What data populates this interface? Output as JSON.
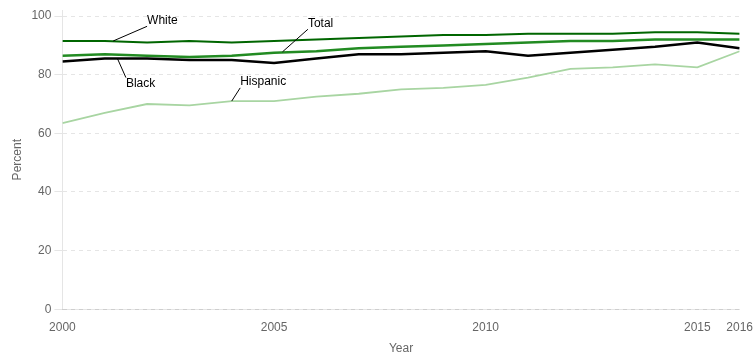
{
  "chart_data": {
    "type": "line",
    "xlabel": "Year",
    "ylabel": "Percent",
    "x": [
      2000,
      2001,
      2002,
      2003,
      2004,
      2005,
      2006,
      2007,
      2008,
      2009,
      2010,
      2011,
      2012,
      2013,
      2014,
      2015,
      2016
    ],
    "series": [
      {
        "name": "Hispanic",
        "color": "#a8d5a2",
        "values": [
          63.5,
          67.0,
          70.0,
          69.5,
          71.0,
          71.0,
          72.5,
          73.5,
          75.0,
          75.5,
          76.5,
          79.0,
          82.0,
          82.5,
          83.5,
          82.5,
          88.0
        ]
      },
      {
        "name": "Total",
        "color": "#228B22",
        "values": [
          86.5,
          87.0,
          86.5,
          86.0,
          86.5,
          87.5,
          88.0,
          89.0,
          89.5,
          90.0,
          90.5,
          91.0,
          91.5,
          91.5,
          92.0,
          92.0,
          92.0
        ]
      },
      {
        "name": "White",
        "color": "#006600",
        "values": [
          91.5,
          91.5,
          91.0,
          91.5,
          91.0,
          91.5,
          92.0,
          92.5,
          93.0,
          93.5,
          93.5,
          94.0,
          94.0,
          94.0,
          94.5,
          94.5,
          94.0
        ]
      },
      {
        "name": "Black",
        "color": "#000000",
        "values": [
          84.5,
          85.5,
          85.5,
          85.0,
          85.0,
          84.0,
          85.5,
          87.0,
          87.0,
          87.5,
          88.0,
          86.5,
          87.5,
          88.5,
          89.5,
          91.0,
          89.0
        ]
      }
    ],
    "xlim": [
      2000,
      2016
    ],
    "xticks": [
      2000,
      2005,
      2010,
      2015,
      2016
    ],
    "ylim": [
      0,
      102
    ],
    "yticks": [
      0,
      20,
      40,
      60,
      80,
      100
    ],
    "grid": "y",
    "annotations": [
      {
        "text": "White",
        "x": 2001.2,
        "y": 91.5,
        "text_x": 2002.0,
        "text_y": 96.5
      },
      {
        "text": "Total",
        "x": 2005.2,
        "y": 87.8,
        "text_x": 2005.8,
        "text_y": 95.5
      },
      {
        "text": "Black",
        "x": 2001.3,
        "y": 85.5,
        "text_x": 2001.5,
        "text_y": 79.0
      },
      {
        "text": "Hispanic",
        "x": 2004.0,
        "y": 71.0,
        "text_x": 2004.2,
        "text_y": 75.5
      }
    ]
  }
}
